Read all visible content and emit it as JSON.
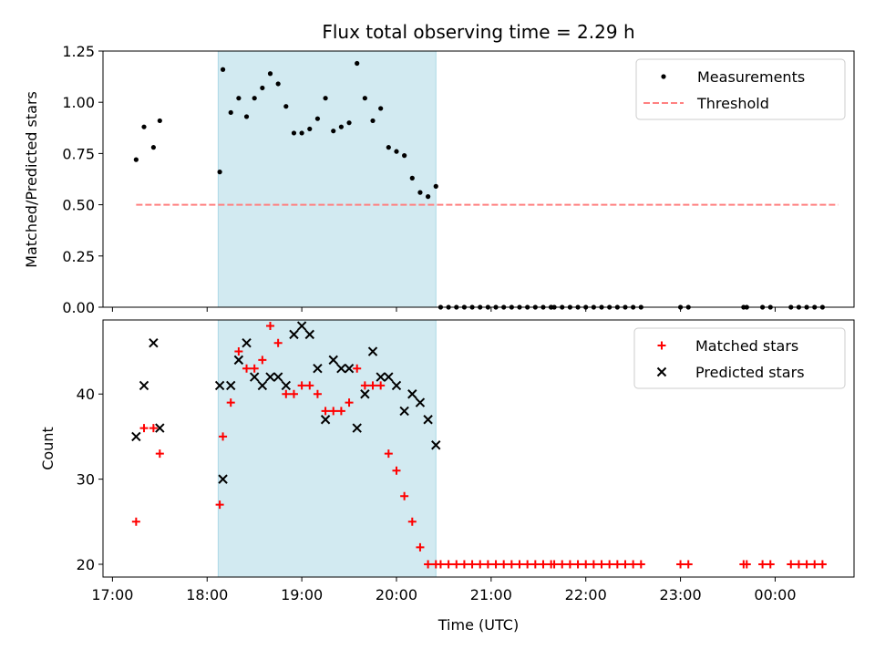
{
  "chart_data": [
    {
      "type": "scatter",
      "title": "Flux total observing time = 2.29 h",
      "ylabel": "Matched/Predicted stars",
      "xlabel": "",
      "ylim": [
        0,
        1.25
      ],
      "yticks": [
        "0.00",
        "0.25",
        "0.50",
        "0.75",
        "1.00",
        "1.25"
      ],
      "shaded_span": [
        "18:07",
        "20:25"
      ],
      "shade_color": "#add8e6",
      "legend": {
        "position": "top-right",
        "entries": [
          "Measurements",
          "Threshold"
        ]
      },
      "threshold": {
        "name": "Threshold",
        "value": 0.5,
        "x_range": [
          "17:15",
          "00:40"
        ],
        "color": "#ff8080"
      },
      "series": [
        {
          "name": "Measurements",
          "color": "#000000",
          "points": [
            [
              "17:15",
              0.72
            ],
            [
              "17:20",
              0.88
            ],
            [
              "17:26",
              0.78
            ],
            [
              "17:30",
              0.91
            ],
            [
              "18:08",
              0.66
            ],
            [
              "18:10",
              1.16
            ],
            [
              "18:15",
              0.95
            ],
            [
              "18:20",
              1.02
            ],
            [
              "18:25",
              0.93
            ],
            [
              "18:30",
              1.02
            ],
            [
              "18:35",
              1.07
            ],
            [
              "18:40",
              1.14
            ],
            [
              "18:45",
              1.09
            ],
            [
              "18:50",
              0.98
            ],
            [
              "18:55",
              0.85
            ],
            [
              "19:00",
              0.85
            ],
            [
              "19:05",
              0.87
            ],
            [
              "19:10",
              0.92
            ],
            [
              "19:15",
              1.02
            ],
            [
              "19:20",
              0.86
            ],
            [
              "19:25",
              0.88
            ],
            [
              "19:30",
              0.9
            ],
            [
              "19:35",
              1.19
            ],
            [
              "19:40",
              1.02
            ],
            [
              "19:45",
              0.91
            ],
            [
              "19:50",
              0.97
            ],
            [
              "19:55",
              0.78
            ],
            [
              "20:00",
              0.76
            ],
            [
              "20:05",
              0.74
            ],
            [
              "20:10",
              0.63
            ],
            [
              "20:15",
              0.56
            ],
            [
              "20:20",
              0.54
            ],
            [
              "20:25",
              0.59
            ],
            [
              "20:28",
              0
            ],
            [
              "20:33",
              0
            ],
            [
              "20:38",
              0
            ],
            [
              "20:43",
              0
            ],
            [
              "20:48",
              0
            ],
            [
              "20:53",
              0
            ],
            [
              "20:58",
              0
            ],
            [
              "21:03",
              0
            ],
            [
              "21:08",
              0
            ],
            [
              "21:13",
              0
            ],
            [
              "21:18",
              0
            ],
            [
              "21:23",
              0
            ],
            [
              "21:28",
              0
            ],
            [
              "21:33",
              0
            ],
            [
              "21:38",
              0
            ],
            [
              "21:38",
              0
            ],
            [
              "21:40",
              0
            ],
            [
              "21:45",
              0
            ],
            [
              "21:50",
              0
            ],
            [
              "21:55",
              0
            ],
            [
              "22:00",
              0
            ],
            [
              "22:05",
              0
            ],
            [
              "22:10",
              0
            ],
            [
              "22:15",
              0
            ],
            [
              "22:20",
              0
            ],
            [
              "22:25",
              0
            ],
            [
              "22:30",
              0
            ],
            [
              "22:35",
              0
            ],
            [
              "23:00",
              0
            ],
            [
              "23:05",
              0
            ],
            [
              "23:40",
              0
            ],
            [
              "23:42",
              0
            ],
            [
              "23:52",
              0
            ],
            [
              "23:57",
              0
            ],
            [
              "00:10",
              0
            ],
            [
              "00:15",
              0
            ],
            [
              "00:20",
              0
            ],
            [
              "00:25",
              0
            ],
            [
              "00:30",
              0
            ]
          ]
        }
      ]
    },
    {
      "type": "scatter",
      "title": "",
      "ylabel": "Count",
      "xlabel": "Time (UTC)",
      "ylim": [
        18.5,
        48.7
      ],
      "yticks": [
        "20",
        "30",
        "40"
      ],
      "xticks": [
        "17:00",
        "18:00",
        "19:00",
        "20:00",
        "21:00",
        "22:00",
        "23:00",
        "00:00"
      ],
      "shaded_span": [
        "18:07",
        "20:25"
      ],
      "shade_color": "#add8e6",
      "legend": {
        "position": "top-right",
        "entries": [
          "Matched stars",
          "Predicted stars"
        ]
      },
      "series": [
        {
          "name": "Matched stars",
          "marker": "plus",
          "color": "#ff0000",
          "points": [
            [
              "17:15",
              25
            ],
            [
              "17:20",
              36
            ],
            [
              "17:26",
              36
            ],
            [
              "17:30",
              33
            ],
            [
              "18:08",
              27
            ],
            [
              "18:10",
              35
            ],
            [
              "18:15",
              39
            ],
            [
              "18:20",
              45
            ],
            [
              "18:25",
              43
            ],
            [
              "18:30",
              43
            ],
            [
              "18:35",
              44
            ],
            [
              "18:40",
              48
            ],
            [
              "18:45",
              46
            ],
            [
              "18:50",
              40
            ],
            [
              "18:55",
              40
            ],
            [
              "19:00",
              41
            ],
            [
              "19:05",
              41
            ],
            [
              "19:10",
              40
            ],
            [
              "19:15",
              38
            ],
            [
              "19:20",
              38
            ],
            [
              "19:25",
              38
            ],
            [
              "19:30",
              39
            ],
            [
              "19:35",
              43
            ],
            [
              "19:40",
              41
            ],
            [
              "19:45",
              41
            ],
            [
              "19:50",
              41
            ],
            [
              "19:55",
              33
            ],
            [
              "20:00",
              31
            ],
            [
              "20:05",
              28
            ],
            [
              "20:10",
              25
            ],
            [
              "20:15",
              22
            ],
            [
              "20:20",
              20
            ],
            [
              "20:25",
              20
            ],
            [
              "20:28",
              20
            ],
            [
              "20:33",
              20
            ],
            [
              "20:38",
              20
            ],
            [
              "20:43",
              20
            ],
            [
              "20:48",
              20
            ],
            [
              "20:53",
              20
            ],
            [
              "20:58",
              20
            ],
            [
              "21:03",
              20
            ],
            [
              "21:08",
              20
            ],
            [
              "21:13",
              20
            ],
            [
              "21:18",
              20
            ],
            [
              "21:23",
              20
            ],
            [
              "21:28",
              20
            ],
            [
              "21:33",
              20
            ],
            [
              "21:38",
              20
            ],
            [
              "21:40",
              20
            ],
            [
              "21:45",
              20
            ],
            [
              "21:50",
              20
            ],
            [
              "21:55",
              20
            ],
            [
              "22:00",
              20
            ],
            [
              "22:05",
              20
            ],
            [
              "22:10",
              20
            ],
            [
              "22:15",
              20
            ],
            [
              "22:20",
              20
            ],
            [
              "22:25",
              20
            ],
            [
              "22:30",
              20
            ],
            [
              "22:35",
              20
            ],
            [
              "23:00",
              20
            ],
            [
              "23:05",
              20
            ],
            [
              "23:40",
              20
            ],
            [
              "23:42",
              20
            ],
            [
              "23:52",
              20
            ],
            [
              "23:57",
              20
            ],
            [
              "00:10",
              20
            ],
            [
              "00:15",
              20
            ],
            [
              "00:20",
              20
            ],
            [
              "00:25",
              20
            ],
            [
              "00:30",
              20
            ]
          ]
        },
        {
          "name": "Predicted stars",
          "marker": "x",
          "color": "#000000",
          "points": [
            [
              "17:15",
              35
            ],
            [
              "17:20",
              41
            ],
            [
              "17:26",
              46
            ],
            [
              "17:30",
              36
            ],
            [
              "18:08",
              41
            ],
            [
              "18:10",
              30
            ],
            [
              "18:15",
              41
            ],
            [
              "18:20",
              44
            ],
            [
              "18:25",
              46
            ],
            [
              "18:30",
              42
            ],
            [
              "18:35",
              41
            ],
            [
              "18:40",
              42
            ],
            [
              "18:45",
              42
            ],
            [
              "18:50",
              41
            ],
            [
              "18:55",
              47
            ],
            [
              "19:00",
              48
            ],
            [
              "19:05",
              47
            ],
            [
              "19:10",
              43
            ],
            [
              "19:15",
              37
            ],
            [
              "19:20",
              44
            ],
            [
              "19:25",
              43
            ],
            [
              "19:30",
              43
            ],
            [
              "19:35",
              36
            ],
            [
              "19:40",
              40
            ],
            [
              "19:45",
              45
            ],
            [
              "19:50",
              42
            ],
            [
              "19:55",
              42
            ],
            [
              "20:00",
              41
            ],
            [
              "20:05",
              38
            ],
            [
              "20:10",
              40
            ],
            [
              "20:15",
              39
            ],
            [
              "20:20",
              37
            ],
            [
              "20:25",
              34
            ]
          ]
        }
      ]
    }
  ]
}
